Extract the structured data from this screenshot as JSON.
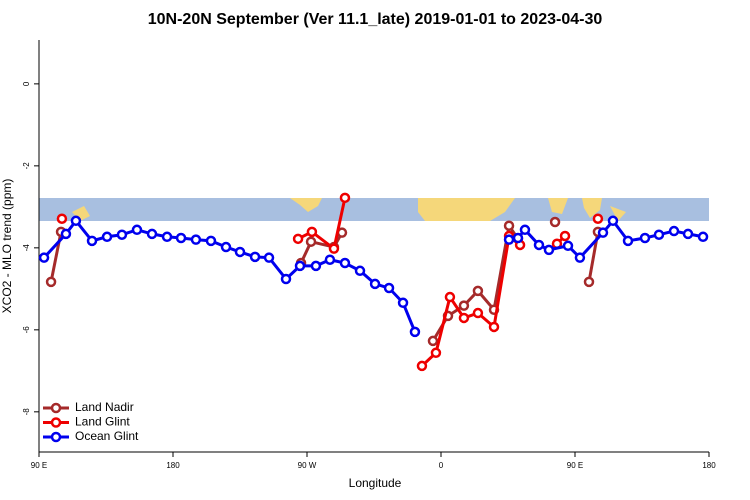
{
  "chart_data": {
    "type": "line",
    "title": "10N-20N September (Ver 11.1_late)   2019-01-01 to 2023-04-30",
    "xlabel": "Longitude",
    "ylabel": "XCO2 - MLO trend (ppm)",
    "xlim": [
      90,
      540
    ],
    "ylim": [
      -8.98,
      1.07
    ],
    "xticks": [
      {
        "value": 90,
        "label": "90 E"
      },
      180,
      {
        "value": 270,
        "label": "90 W"
      },
      {
        "value": 360,
        "label": "0"
      },
      {
        "value": 450,
        "label": "90 E"
      },
      {
        "value": 540,
        "label": "180"
      }
    ],
    "yticks": [
      0,
      -2,
      -4,
      -6,
      -8
    ],
    "legend": "bottom-left",
    "series": [
      {
        "name": "Land Nadir",
        "color": "#a52a2a",
        "x": [
          98.1,
          104.8,
          null,
          266,
          272.7,
          288.1,
          293.5,
          null,
          354.6,
          364.7,
          375.4,
          384.8,
          395.6,
          405.7,
          411.7,
          null,
          436.6,
          null,
          459.4,
          465.4
        ],
        "values": [
          -4.83,
          -3.61,
          null,
          -4.37,
          -3.85,
          -3.98,
          -3.63,
          null,
          -6.27,
          -5.66,
          -5.41,
          -5.05,
          -5.51,
          -3.46,
          -3.78,
          null,
          -3.37,
          null,
          -4.83,
          -3.61
        ]
      },
      {
        "name": "Land Glint",
        "color": "#ee0000",
        "x": [
          105.4,
          null,
          264,
          273.3,
          288.1,
          295.5,
          null,
          347.2,
          356.6,
          366,
          375.4,
          384.8,
          395.6,
          405.7,
          413.1,
          null,
          437.9,
          443.3,
          null,
          465.4
        ],
        "values": [
          -3.29,
          null,
          -3.78,
          -3.61,
          -4.02,
          -2.78,
          null,
          -6.88,
          -6.56,
          -5.2,
          -5.71,
          -5.59,
          -5.93,
          -3.71,
          -3.93,
          null,
          -3.9,
          -3.71,
          null,
          -3.29
        ]
      },
      {
        "name": "Ocean Glint",
        "color": "#0000ee",
        "x": [
          93.4,
          108.1,
          114.8,
          125.6,
          135.7,
          145.7,
          155.8,
          165.9,
          176,
          185.4,
          195.4,
          205.5,
          215.6,
          225,
          235.1,
          244.5,
          255.9,
          265.3,
          276,
          285.4,
          295.5,
          305.6,
          315.7,
          325.1,
          334.5,
          342.5,
          null,
          405.7,
          411.7,
          416.4,
          425.8,
          432.5,
          445.3,
          453.3,
          468.8,
          475.5,
          485.6,
          497,
          506.4,
          516.5,
          525.9,
          536
        ],
        "values": [
          -4.24,
          -3.66,
          -3.34,
          -3.83,
          -3.73,
          -3.68,
          -3.56,
          -3.66,
          -3.73,
          -3.76,
          -3.8,
          -3.83,
          -3.98,
          -4.1,
          -4.22,
          -4.24,
          -4.76,
          -4.44,
          -4.44,
          -4.29,
          -4.37,
          -4.56,
          -4.88,
          -4.98,
          -5.34,
          -6.05,
          null,
          -3.8,
          -3.76,
          -3.56,
          -3.93,
          -4.05,
          -3.95,
          -4.24,
          -3.63,
          -3.34,
          -3.83,
          -3.76,
          -3.68,
          -3.59,
          -3.66,
          -3.73
        ]
      }
    ]
  }
}
